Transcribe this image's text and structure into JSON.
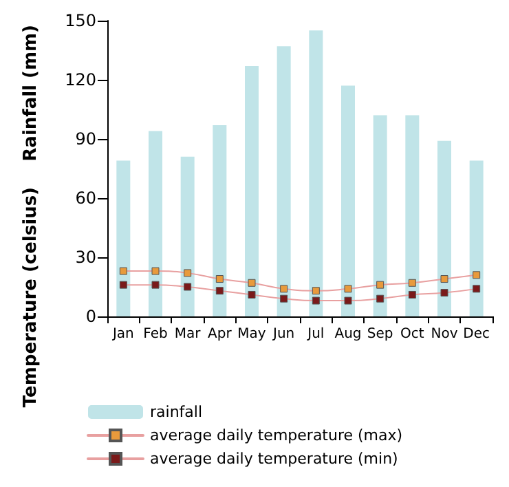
{
  "chart_data": {
    "type": "bar",
    "ylabel": "Rainfall (mm)",
    "annotations": [
      "Temperature (celsius)"
    ],
    "categories": [
      "Jan",
      "Feb",
      "Mar",
      "Apr",
      "May",
      "Jun",
      "Jul",
      "Aug",
      "Sep",
      "Oct",
      "Nov",
      "Dec"
    ],
    "series": [
      {
        "name": "rainfall",
        "color": "#c0e4e8",
        "values": [
          79,
          94,
          81,
          97,
          127,
          137,
          145,
          117,
          102,
          102,
          89,
          79
        ]
      },
      {
        "name": "average daily temperature (max)",
        "type": "line",
        "color": "#e89a3c",
        "values": [
          23,
          23,
          22,
          19,
          17,
          14,
          13,
          14,
          16,
          17,
          19,
          21
        ]
      },
      {
        "name": "average daily temperature (min)",
        "type": "line",
        "color": "#7a1a1a",
        "values": [
          16,
          16,
          15,
          13,
          11,
          9,
          8,
          8,
          9,
          11,
          12,
          14
        ]
      }
    ],
    "ylim": [
      0,
      150
    ],
    "yticks": [
      0,
      30,
      60,
      90,
      120,
      150
    ],
    "grid": false,
    "legend": "bottom",
    "marker": "square",
    "line_style": "solid"
  }
}
